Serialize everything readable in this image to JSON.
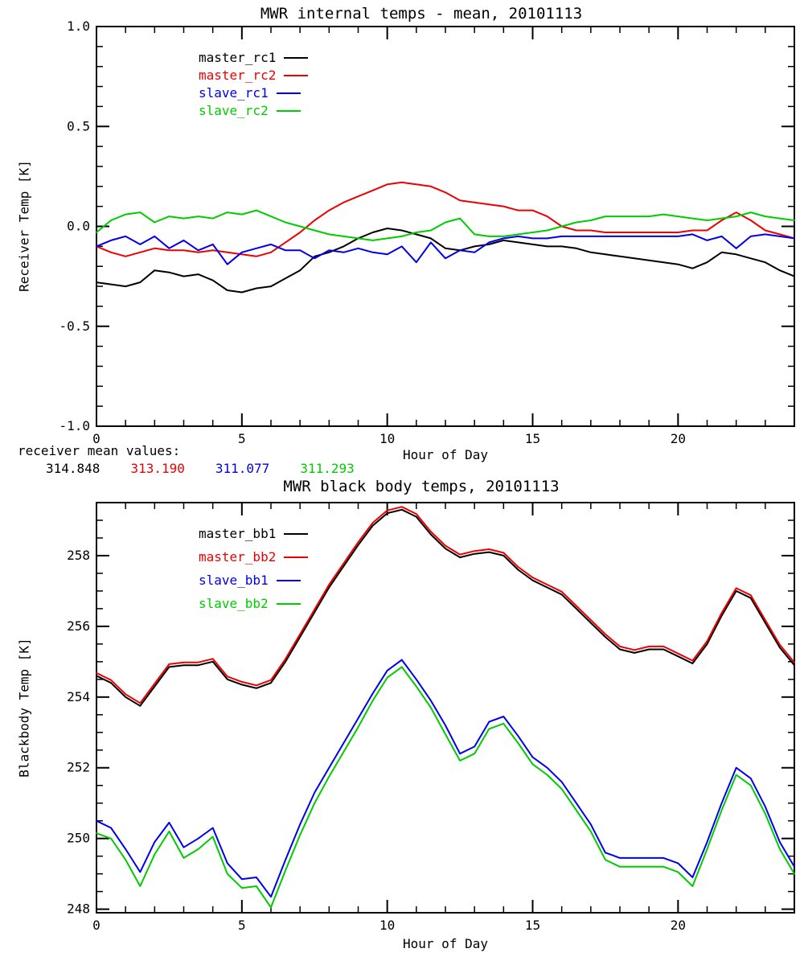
{
  "page": {
    "background": "#ffffff"
  },
  "chart_data": [
    {
      "type": "line",
      "title": "MWR internal temps - mean, 20101113",
      "xlabel": "Hour of Day",
      "ylabel": "Receiver Temp [K]",
      "xlim": [
        0,
        24
      ],
      "ylim": [
        -1.0,
        1.0
      ],
      "xticks": [
        0,
        5,
        10,
        15,
        20
      ],
      "xtick_labels": [
        "0",
        "5",
        "10",
        "15",
        "20"
      ],
      "x_minor": 1,
      "yticks": [
        -1.0,
        -0.5,
        0.0,
        0.5,
        1.0
      ],
      "ytick_labels": [
        "-1.0",
        "-0.5",
        "0.0",
        "0.5",
        "1.0"
      ],
      "y_minor": 0.1,
      "grid": false,
      "legend_position": "upper-left-inside",
      "x_step": 0.5,
      "series": [
        {
          "name": "master_rc1",
          "color": "#000000",
          "values": [
            -0.28,
            -0.29,
            -0.3,
            -0.28,
            -0.22,
            -0.23,
            -0.25,
            -0.24,
            -0.27,
            -0.32,
            -0.33,
            -0.31,
            -0.3,
            -0.26,
            -0.22,
            -0.15,
            -0.13,
            -0.1,
            -0.06,
            -0.03,
            -0.01,
            -0.02,
            -0.04,
            -0.06,
            -0.11,
            -0.12,
            -0.1,
            -0.09,
            -0.07,
            -0.08,
            -0.09,
            -0.1,
            -0.1,
            -0.11,
            -0.13,
            -0.14,
            -0.15,
            -0.16,
            -0.17,
            -0.18,
            -0.19,
            -0.21,
            -0.18,
            -0.13,
            -0.14,
            -0.16,
            -0.18,
            -0.22,
            -0.25
          ]
        },
        {
          "name": "master_rc2",
          "color": "#ee0000",
          "values": [
            -0.1,
            -0.13,
            -0.15,
            -0.13,
            -0.11,
            -0.12,
            -0.12,
            -0.13,
            -0.12,
            -0.13,
            -0.14,
            -0.15,
            -0.13,
            -0.08,
            -0.03,
            0.03,
            0.08,
            0.12,
            0.15,
            0.18,
            0.21,
            0.22,
            0.21,
            0.2,
            0.17,
            0.13,
            0.12,
            0.11,
            0.1,
            0.08,
            0.08,
            0.05,
            0.0,
            -0.02,
            -0.02,
            -0.03,
            -0.03,
            -0.03,
            -0.03,
            -0.03,
            -0.03,
            -0.02,
            -0.02,
            0.03,
            0.07,
            0.03,
            -0.02,
            -0.04,
            -0.06
          ]
        },
        {
          "name": "slave_rc1",
          "color": "#0000ee",
          "values": [
            -0.1,
            -0.07,
            -0.05,
            -0.09,
            -0.05,
            -0.11,
            -0.07,
            -0.12,
            -0.09,
            -0.19,
            -0.13,
            -0.11,
            -0.09,
            -0.12,
            -0.12,
            -0.16,
            -0.12,
            -0.13,
            -0.11,
            -0.13,
            -0.14,
            -0.1,
            -0.18,
            -0.08,
            -0.16,
            -0.12,
            -0.13,
            -0.08,
            -0.06,
            -0.05,
            -0.06,
            -0.06,
            -0.05,
            -0.05,
            -0.05,
            -0.05,
            -0.05,
            -0.05,
            -0.05,
            -0.05,
            -0.05,
            -0.04,
            -0.07,
            -0.05,
            -0.11,
            -0.05,
            -0.04,
            -0.05,
            -0.06
          ]
        },
        {
          "name": "slave_rc2",
          "color": "#00cc00",
          "values": [
            -0.03,
            0.03,
            0.06,
            0.07,
            0.02,
            0.05,
            0.04,
            0.05,
            0.04,
            0.07,
            0.06,
            0.08,
            0.05,
            0.02,
            0.0,
            -0.02,
            -0.04,
            -0.05,
            -0.06,
            -0.07,
            -0.06,
            -0.05,
            -0.03,
            -0.02,
            0.02,
            0.04,
            -0.04,
            -0.05,
            -0.05,
            -0.04,
            -0.03,
            -0.02,
            0.0,
            0.02,
            0.03,
            0.05,
            0.05,
            0.05,
            0.05,
            0.06,
            0.05,
            0.04,
            0.03,
            0.04,
            0.05,
            0.07,
            0.05,
            0.04,
            0.03
          ]
        }
      ],
      "footnote": {
        "label": "receiver mean values:",
        "values": [
          {
            "text": "314.848",
            "color": "#000000"
          },
          {
            "text": "313.190",
            "color": "#ee0000"
          },
          {
            "text": "311.077",
            "color": "#0000ee"
          },
          {
            "text": "311.293",
            "color": "#00cc00"
          }
        ]
      }
    },
    {
      "type": "line",
      "title": "MWR black body temps, 20101113",
      "xlabel": "Hour of Day",
      "ylabel": "Blackbody Temp [K]",
      "xlim": [
        0,
        24
      ],
      "ylim": [
        247.9,
        259.5
      ],
      "xticks": [
        0,
        5,
        10,
        15,
        20
      ],
      "xtick_labels": [
        "0",
        "5",
        "10",
        "15",
        "20"
      ],
      "x_minor": 1,
      "yticks": [
        248,
        250,
        252,
        254,
        256,
        258
      ],
      "ytick_labels": [
        "248",
        "250",
        "252",
        "254",
        "256",
        "258"
      ],
      "y_minor": 0.5,
      "grid": false,
      "legend_position": "upper-left-inside",
      "x_step": 0.5,
      "series": [
        {
          "name": "master_bb1",
          "color": "#000000",
          "values": [
            254.6,
            254.4,
            254.0,
            253.75,
            254.3,
            254.85,
            254.9,
            254.9,
            255.0,
            254.5,
            254.35,
            254.25,
            254.4,
            255.0,
            255.7,
            256.4,
            257.1,
            257.7,
            258.3,
            258.85,
            259.2,
            259.3,
            259.1,
            258.6,
            258.2,
            257.95,
            258.05,
            258.1,
            258.0,
            257.6,
            257.3,
            257.1,
            256.9,
            256.5,
            256.1,
            255.7,
            255.35,
            255.25,
            255.35,
            255.35,
            255.15,
            254.95,
            255.5,
            256.3,
            257.0,
            256.8,
            256.1,
            255.4,
            254.9
          ]
        },
        {
          "name": "master_bb2",
          "color": "#ee0000",
          "values": [
            254.68,
            254.48,
            254.08,
            253.83,
            254.38,
            254.93,
            254.98,
            254.98,
            255.08,
            254.58,
            254.43,
            254.33,
            254.48,
            255.08,
            255.78,
            256.48,
            257.18,
            257.78,
            258.38,
            258.93,
            259.28,
            259.38,
            259.18,
            258.68,
            258.28,
            258.03,
            258.13,
            258.18,
            258.08,
            257.68,
            257.38,
            257.18,
            256.98,
            256.58,
            256.18,
            255.78,
            255.43,
            255.33,
            255.43,
            255.43,
            255.23,
            255.03,
            255.58,
            256.38,
            257.08,
            256.88,
            256.18,
            255.48,
            254.98
          ]
        },
        {
          "name": "slave_bb1",
          "color": "#0000ee",
          "values": [
            250.5,
            250.3,
            249.7,
            249.05,
            249.9,
            250.45,
            249.75,
            250.0,
            250.3,
            249.3,
            248.85,
            248.9,
            248.35,
            249.4,
            250.4,
            251.3,
            252.0,
            252.7,
            253.4,
            254.1,
            254.75,
            255.05,
            254.5,
            253.9,
            253.2,
            252.4,
            252.6,
            253.3,
            253.45,
            252.9,
            252.3,
            252.0,
            251.6,
            251.0,
            250.4,
            249.6,
            249.45,
            249.45,
            249.45,
            249.45,
            249.3,
            248.9,
            249.9,
            251.0,
            252.0,
            251.7,
            250.9,
            249.9,
            249.2
          ]
        },
        {
          "name": "slave_bb2",
          "color": "#00cc00",
          "values": [
            250.15,
            250.0,
            249.4,
            248.65,
            249.55,
            250.2,
            249.45,
            249.7,
            250.05,
            249.0,
            248.6,
            248.65,
            248.05,
            249.1,
            250.1,
            251.0,
            251.75,
            252.45,
            253.15,
            253.9,
            254.55,
            254.85,
            254.3,
            253.7,
            252.95,
            252.2,
            252.4,
            253.1,
            253.25,
            252.7,
            252.1,
            251.8,
            251.4,
            250.8,
            250.2,
            249.4,
            249.2,
            249.2,
            249.2,
            249.2,
            249.05,
            248.65,
            249.7,
            250.8,
            251.8,
            251.5,
            250.7,
            249.7,
            249.0
          ]
        }
      ]
    }
  ]
}
